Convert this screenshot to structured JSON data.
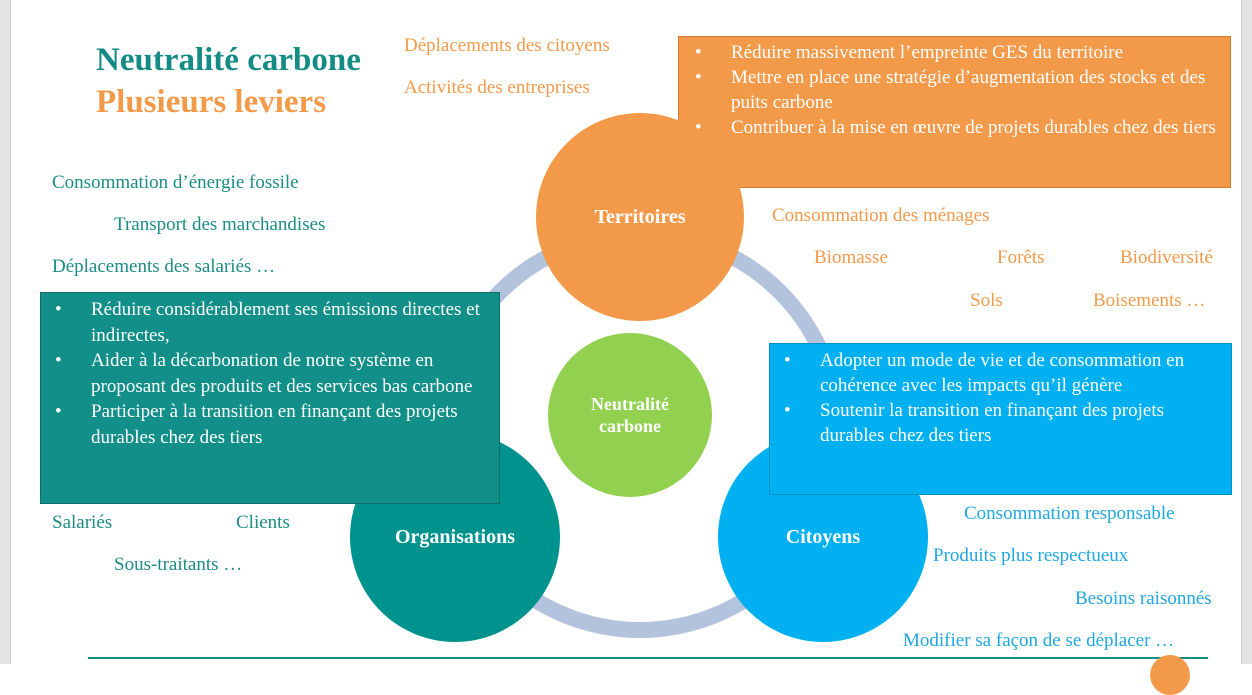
{
  "title": {
    "line1": "Neutralité carbone",
    "line2": "Plusieurs leviers"
  },
  "colors": {
    "teal": "#1b8c84",
    "orange": "#f39a4a",
    "green": "#92d050",
    "blue": "#00b0f0",
    "ring": "#b4c3dd"
  },
  "circles": {
    "territoires": "Territoires",
    "neutralite_line1": "Neutralité",
    "neutralite_line2": "carbone",
    "organisations": "Organisations",
    "citoyens": "Citoyens"
  },
  "territoires": {
    "levers_top": [
      "Déplacements des citoyens",
      "Activités des entreprises"
    ],
    "box": [
      "Réduire massivement l’empreinte GES du territoire",
      "Mettre en place une stratégie d’augmentation des stocks et des puits carbone",
      "Contribuer à la mise en œuvre de projets durables chez des tiers"
    ],
    "levers_right": [
      "Consommation des ménages",
      "Biomasse",
      "Forêts",
      "Biodiversité",
      "Sols",
      "Boisements …"
    ]
  },
  "organisations": {
    "levers_top": [
      "Consommation d’énergie fossile",
      "Transport des marchandises",
      "Déplacements des salariés …"
    ],
    "box": [
      "Réduire considérablement ses émissions directes et indirectes,",
      "Aider à la décarbonation de notre système en proposant des produits et des services bas carbone",
      "Participer à la transition en finançant des projets durables chez des tiers"
    ],
    "levers_bottom": [
      "Salariés",
      "Clients",
      "Sous-traitants …"
    ]
  },
  "citoyens": {
    "box": [
      "Adopter un mode de vie et de consommation en cohérence avec les impacts qu’il génère",
      "Soutenir la transition en finançant des projets durables chez des tiers"
    ],
    "levers": [
      "Consommation responsable",
      "Produits plus respectueux",
      "Besoins raisonnés",
      "Modifier sa façon de se déplacer …"
    ]
  }
}
